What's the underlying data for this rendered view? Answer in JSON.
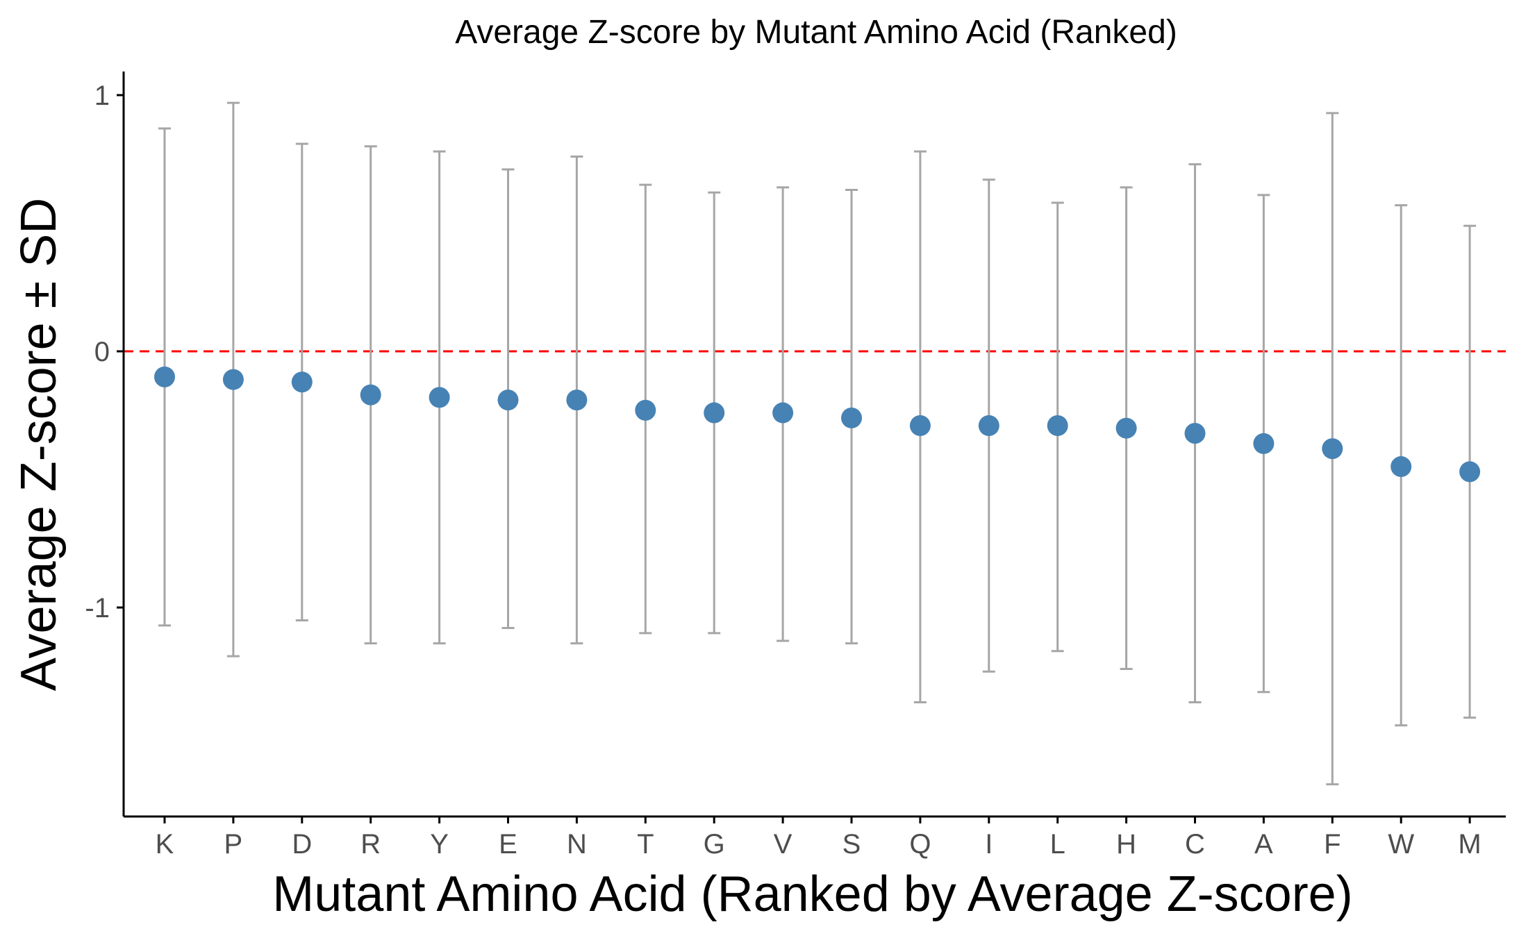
{
  "chart_data": {
    "type": "scatter",
    "title": "Average Z-score by Mutant Amino Acid (Ranked)",
    "xlabel": "Mutant Amino Acid (Ranked by Average Z-score)",
    "ylabel": "Average Z-score ± SD",
    "categories": [
      "K",
      "P",
      "D",
      "R",
      "Y",
      "E",
      "N",
      "T",
      "G",
      "V",
      "S",
      "Q",
      "I",
      "L",
      "H",
      "C",
      "A",
      "F",
      "W",
      "M"
    ],
    "values": [
      -0.1,
      -0.11,
      -0.12,
      -0.17,
      -0.18,
      -0.19,
      -0.19,
      -0.23,
      -0.24,
      -0.24,
      -0.26,
      -0.29,
      -0.29,
      -0.29,
      -0.3,
      -0.32,
      -0.36,
      -0.38,
      -0.45,
      -0.47
    ],
    "error_upper": [
      0.87,
      0.97,
      0.81,
      0.8,
      0.78,
      0.71,
      0.76,
      0.65,
      0.62,
      0.64,
      0.63,
      0.78,
      0.67,
      0.58,
      0.64,
      0.73,
      0.61,
      0.93,
      0.57,
      0.49
    ],
    "error_lower": [
      -1.07,
      -1.19,
      -1.05,
      -1.14,
      -1.14,
      -1.08,
      -1.14,
      -1.1,
      -1.1,
      -1.13,
      -1.14,
      -1.37,
      -1.25,
      -1.17,
      -1.24,
      -1.37,
      -1.33,
      -1.69,
      -1.46,
      -1.43
    ],
    "yticks": [
      1,
      0,
      -1
    ],
    "ytick_labels": [
      "1",
      "0",
      "-1"
    ],
    "ylim": [
      -1.82,
      1.1
    ],
    "reference_line": 0,
    "grid": false,
    "colors": {
      "points": "#4682B4",
      "error_bars": "#A6A6A6",
      "reference_line": "#FF0000",
      "axis": "#000000",
      "tick_labels": "#4D4D4D"
    }
  }
}
